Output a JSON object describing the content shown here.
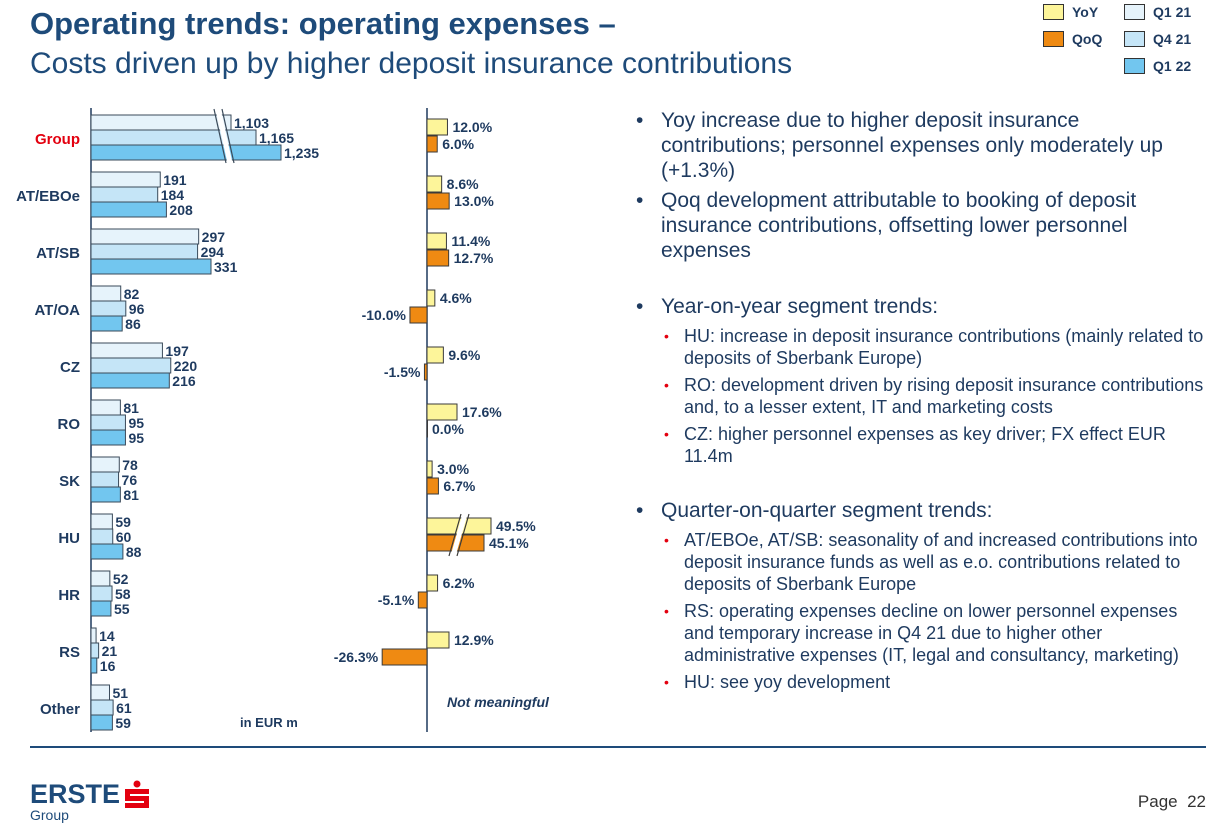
{
  "header": {
    "title": "Operating trends: operating expenses –",
    "subtitle": "Costs driven up by higher deposit insurance contributions"
  },
  "legend": {
    "yoy": "YoY",
    "qoq": "QoQ",
    "q121": "Q1 21",
    "q421": "Q4 21",
    "q122": "Q1 22"
  },
  "colors": {
    "q121": "#e6f3fb",
    "q421": "#c5e5f7",
    "q122": "#72c6ef",
    "yoy": "#fdf59a",
    "qoq": "#ef8a12",
    "axis": "#1e3a5f",
    "highlight": "#e3000f"
  },
  "chart_data": [
    {
      "type": "bar",
      "orientation": "horizontal",
      "unit_label": "in EUR m",
      "categories": [
        "Group",
        "AT/EBOe",
        "AT/SB",
        "AT/OA",
        "CZ",
        "RO",
        "SK",
        "HU",
        "HR",
        "RS",
        "Other"
      ],
      "highlight_category": "Group",
      "axis_break": [
        "Group"
      ],
      "series": [
        {
          "name": "Q1 21",
          "values": [
            1103,
            191,
            297,
            82,
            197,
            81,
            78,
            59,
            52,
            14,
            51
          ],
          "labels": [
            "1,103",
            "191",
            "297",
            "82",
            "197",
            "81",
            "78",
            "59",
            "52",
            "14",
            "51"
          ]
        },
        {
          "name": "Q4 21",
          "values": [
            1165,
            184,
            294,
            96,
            220,
            95,
            76,
            60,
            58,
            21,
            61
          ],
          "labels": [
            "1,165",
            "184",
            "294",
            "96",
            "220",
            "95",
            "76",
            "60",
            "58",
            "21",
            "61"
          ]
        },
        {
          "name": "Q1 22",
          "values": [
            1235,
            208,
            331,
            86,
            216,
            95,
            81,
            88,
            55,
            16,
            59
          ],
          "labels": [
            "1,235",
            "208",
            "331",
            "86",
            "216",
            "95",
            "81",
            "88",
            "55",
            "16",
            "59"
          ]
        }
      ]
    },
    {
      "type": "bar",
      "orientation": "horizontal",
      "categories": [
        "Group",
        "AT/EBOe",
        "AT/SB",
        "AT/OA",
        "CZ",
        "RO",
        "SK",
        "HU",
        "HR",
        "RS",
        "Other"
      ],
      "axis_break": [
        "HU"
      ],
      "note": "Not meaningful",
      "series": [
        {
          "name": "YoY",
          "values": [
            12.0,
            8.6,
            11.4,
            4.6,
            9.6,
            17.6,
            3.0,
            49.5,
            6.2,
            12.9,
            null
          ],
          "labels": [
            "12.0%",
            "8.6%",
            "11.4%",
            "4.6%",
            "9.6%",
            "17.6%",
            "3.0%",
            "49.5%",
            "6.2%",
            "12.9%",
            ""
          ]
        },
        {
          "name": "QoQ",
          "values": [
            6.0,
            13.0,
            12.7,
            -10.0,
            -1.5,
            0.0,
            6.7,
            45.1,
            -5.1,
            -26.3,
            null
          ],
          "labels": [
            "6.0%",
            "13.0%",
            "12.7%",
            "-10.0%",
            "-1.5%",
            "0.0%",
            "6.7%",
            "45.1%",
            "-5.1%",
            "-26.3%",
            ""
          ]
        }
      ]
    }
  ],
  "commentary": [
    {
      "text": "Yoy increase due to higher deposit insurance contributions; personnel expenses only moderately up (+1.3%)",
      "subs": []
    },
    {
      "text": "Qoq development attributable to booking of deposit insurance contributions, offsetting lower personnel expenses",
      "subs": []
    },
    {
      "text": "Year-on-year segment trends:",
      "subs": [
        "HU: increase in deposit insurance contributions (mainly related to deposits of Sberbank Europe)",
        "RO: development driven by rising deposit insurance contributions and, to a lesser extent, IT and marketing costs",
        "CZ: higher personnel expenses as key driver; FX effect EUR 11.4m"
      ]
    },
    {
      "text": "Quarter-on-quarter segment trends:",
      "subs": [
        "AT/EBOe, AT/SB: seasonality of and increased contributions into deposit insurance funds as well as e.o. contributions related to deposits of Sberbank Europe",
        "RS: operating expenses decline on lower personnel expenses and temporary increase in Q4 21 due to higher other administrative expenses (IT, legal and consultancy, marketing)",
        "HU: see yoy development"
      ]
    }
  ],
  "footer": {
    "logo": "ERSTE",
    "logo_sub": "Group",
    "page_label": "Page",
    "page_number": "22"
  }
}
